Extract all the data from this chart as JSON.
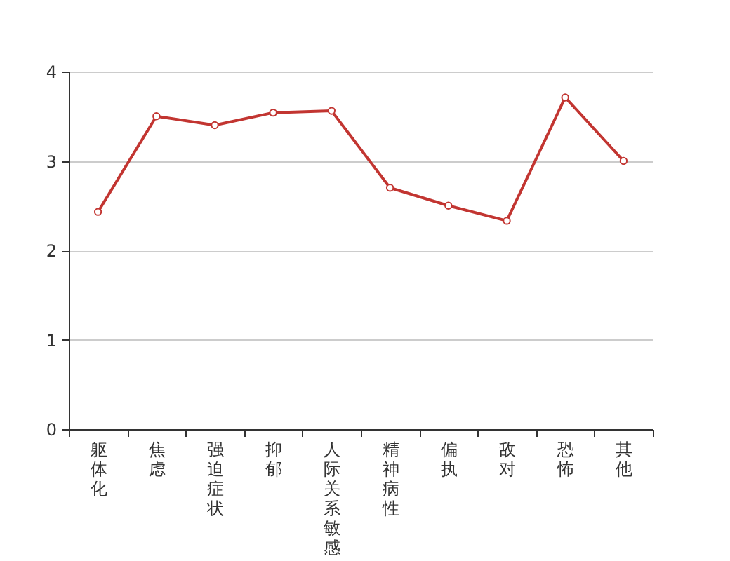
{
  "chart_data": {
    "type": "line",
    "categories": [
      "躯体化",
      "焦虑",
      "强迫症状",
      "抑郁",
      "人际关系敏感",
      "精神病性",
      "偏执",
      "敌对",
      "恐怖",
      "其他"
    ],
    "series": [
      {
        "color": "#c23531",
        "values": [
          2.43,
          3.5,
          3.4,
          3.54,
          3.56,
          2.7,
          2.5,
          2.33,
          3.71,
          3.0
        ]
      }
    ],
    "ylim": [
      0,
      4
    ],
    "yticks": [
      0,
      1,
      2,
      3,
      4
    ],
    "grid": "y",
    "marker": "circle",
    "line_style": "solid"
  }
}
